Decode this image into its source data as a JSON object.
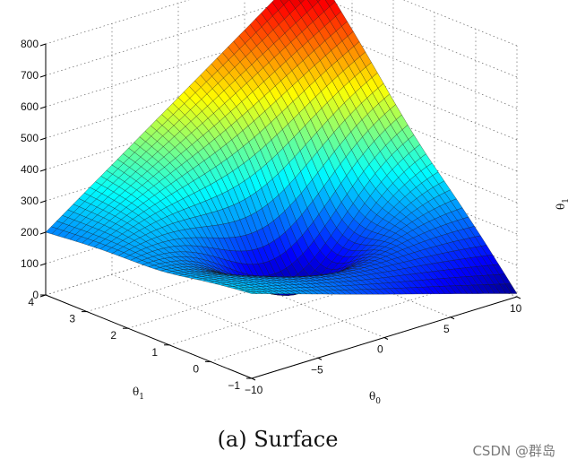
{
  "chart_data": {
    "type": "surface",
    "title": "",
    "x_axis": {
      "label": "θ",
      "label_sub": "0",
      "ticks": [
        -10,
        -5,
        0,
        5,
        10
      ],
      "range": [
        -10,
        10
      ]
    },
    "y_axis": {
      "label": "θ",
      "label_sub": "1",
      "ticks": [
        -1,
        0,
        1,
        2,
        3,
        4
      ],
      "range": [
        -1,
        4
      ]
    },
    "z_axis": {
      "ticks": [
        0,
        100,
        200,
        300,
        400,
        500,
        600,
        700,
        800
      ],
      "range": [
        0,
        800
      ]
    },
    "side_label": {
      "label": "θ",
      "label_sub": "1"
    },
    "colormap": "jet",
    "grid": true,
    "corner_values": [
      {
        "theta0": -10,
        "theta1": -1,
        "z": 270
      },
      {
        "theta0": 10,
        "theta1": -1,
        "z": 10
      },
      {
        "theta0": -10,
        "theta1": 4,
        "z": 200
      },
      {
        "theta0": 10,
        "theta1": 4,
        "z": 800
      }
    ],
    "minimum_region": {
      "theta0_range": [
        -5,
        5
      ],
      "theta1_range": [
        0.5,
        2
      ],
      "z": 3
    }
  },
  "caption": "(a) Surface",
  "watermark": "CSDN @群岛"
}
